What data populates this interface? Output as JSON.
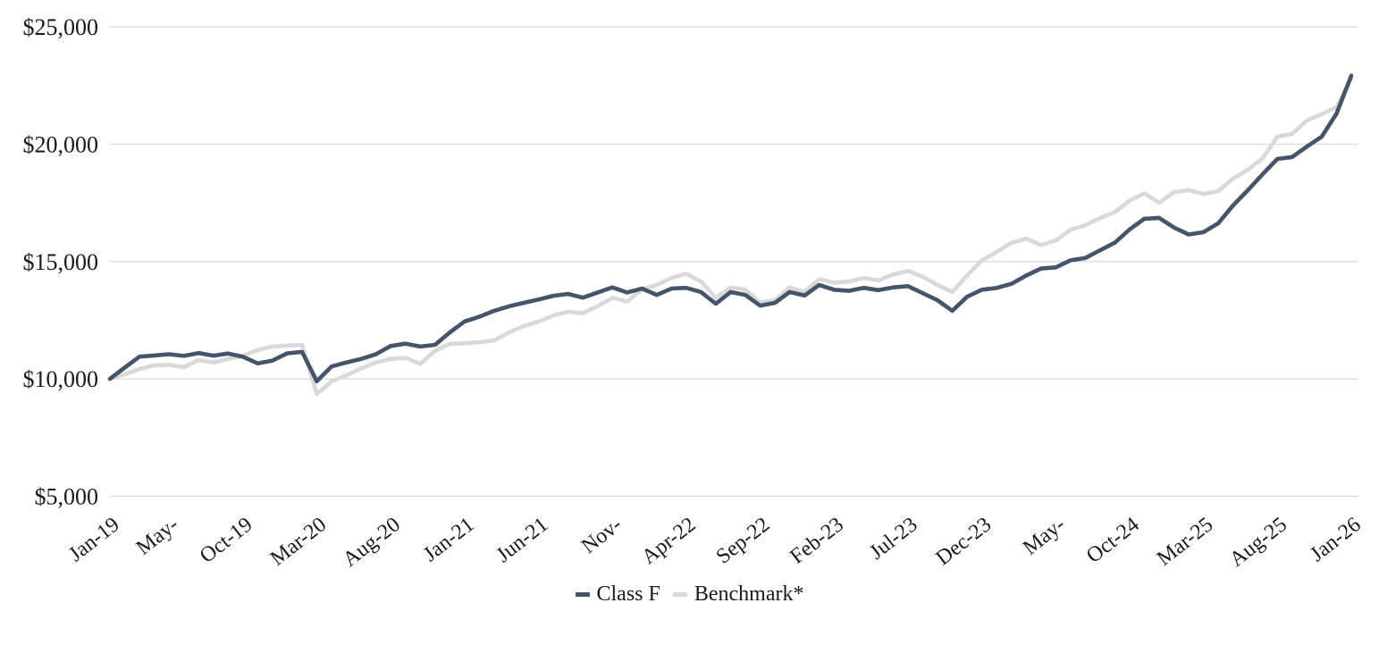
{
  "chart_data": {
    "type": "line",
    "title": "",
    "x_frequency": "monthly",
    "x_range": [
      "Jan-2019",
      "Jan-2026"
    ],
    "x_tick_labels": [
      "Jan-19",
      "May-",
      "Oct-19",
      "Mar-20",
      "Aug-20",
      "Jan-21",
      "Jun-21",
      "Nov-",
      "Apr-22",
      "Sep-22",
      "Feb-23",
      "Jul-23",
      "Dec-23",
      "May-",
      "Oct-24",
      "Mar-25",
      "Aug-25",
      "Jan-26"
    ],
    "x_tick_month_indices": [
      0,
      4,
      9,
      14,
      19,
      24,
      29,
      34,
      39,
      44,
      49,
      54,
      59,
      64,
      69,
      74,
      79,
      84
    ],
    "y_ticks": [
      {
        "label": "$25,000",
        "value": 25000
      },
      {
        "label": "$20,000",
        "value": 20000
      },
      {
        "label": "$15,000",
        "value": 15000
      },
      {
        "label": "$10,000",
        "value": 10000
      },
      {
        "label": "$5,000",
        "value": 5000
      }
    ],
    "ylim": [
      5000,
      25000
    ],
    "grid": "horizontal",
    "legend_position": "bottom-center",
    "colors": {
      "class_f": "#44546A",
      "benchmark": "#D9D9D9",
      "gridline": "#D9D9D9",
      "text": "#1A1A1A"
    },
    "series": [
      {
        "name": "Class F",
        "color_key": "class_f",
        "values": [
          10000,
          10480,
          10950,
          11000,
          11050,
          10980,
          11100,
          10990,
          11080,
          10940,
          10660,
          10780,
          11090,
          11150,
          9900,
          10530,
          10700,
          10850,
          11050,
          11400,
          11500,
          11380,
          11450,
          11980,
          12450,
          12650,
          12900,
          13090,
          13240,
          13380,
          13540,
          13620,
          13460,
          13680,
          13900,
          13680,
          13850,
          13580,
          13850,
          13880,
          13700,
          13200,
          13700,
          13580,
          13120,
          13240,
          13700,
          13550,
          14000,
          13800,
          13750,
          13880,
          13780,
          13900,
          13950,
          13650,
          13350,
          12900,
          13500,
          13800,
          13870,
          14050,
          14400,
          14700,
          14750,
          15050,
          15150,
          15480,
          15800,
          16370,
          16820,
          16860,
          16450,
          16150,
          16250,
          16630,
          17390,
          18040,
          18720,
          19370,
          19450,
          19900,
          20320,
          21300,
          22920
        ]
      },
      {
        "name": "Benchmark*",
        "color_key": "benchmark",
        "values": [
          10000,
          10200,
          10420,
          10580,
          10600,
          10500,
          10800,
          10700,
          10850,
          10990,
          11230,
          11380,
          11420,
          11450,
          9350,
          9900,
          10150,
          10450,
          10700,
          10850,
          10900,
          10640,
          11200,
          11490,
          11520,
          11560,
          11640,
          11980,
          12250,
          12440,
          12700,
          12860,
          12800,
          13100,
          13450,
          13300,
          13810,
          14000,
          14300,
          14480,
          14150,
          13450,
          13900,
          13800,
          13250,
          13350,
          13900,
          13700,
          14250,
          14100,
          14150,
          14300,
          14200,
          14450,
          14600,
          14350,
          14000,
          13700,
          14400,
          15050,
          15400,
          15800,
          15980,
          15700,
          15900,
          16350,
          16550,
          16850,
          17100,
          17600,
          17900,
          17500,
          17960,
          18040,
          17880,
          18000,
          18530,
          18910,
          19410,
          20320,
          20440,
          21010,
          21280,
          21580,
          22800
        ]
      }
    ]
  }
}
